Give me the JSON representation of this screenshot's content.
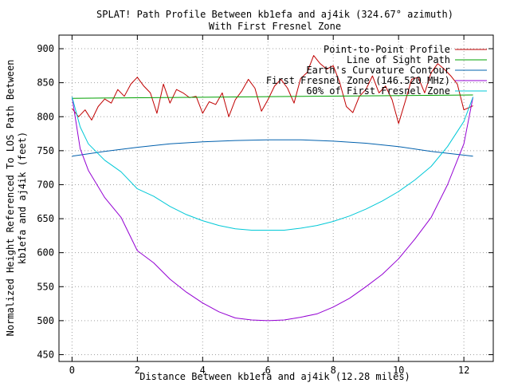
{
  "chart_data": {
    "type": "line",
    "title": "SPLAT! Path Profile Between kb1efa and aj4ik (324.67° azimuth)",
    "subtitle": "With First Fresnel Zone",
    "xlabel": "Distance Between kb1efa and aj4ik (12.28 miles)",
    "ylabel_line1": "Normalized Height Referenced To LOS Path Between",
    "ylabel_line2": "kb1efa and aj4ik (feet)",
    "xlim": [
      -0.4,
      12.9
    ],
    "ylim": [
      440,
      920
    ],
    "x_ticks": [
      0,
      2,
      4,
      6,
      8,
      10,
      12
    ],
    "x_tick_labels": [
      "0",
      "2",
      "4",
      "6",
      "8",
      "10",
      "12"
    ],
    "y_ticks": [
      450,
      500,
      550,
      600,
      650,
      700,
      750,
      800,
      850,
      900
    ],
    "y_tick_labels": [
      "450",
      "500",
      "550",
      "600",
      "650",
      "700",
      "750",
      "800",
      "850",
      "900"
    ],
    "grid": true,
    "legend_position": "top-right",
    "series": [
      {
        "name": "Point-to-Point Profile",
        "color": "#c00000",
        "points": [
          [
            0,
            812
          ],
          [
            0.2,
            800
          ],
          [
            0.4,
            810
          ],
          [
            0.6,
            795
          ],
          [
            0.8,
            815
          ],
          [
            1.0,
            826
          ],
          [
            1.2,
            820
          ],
          [
            1.4,
            840
          ],
          [
            1.6,
            830
          ],
          [
            1.8,
            848
          ],
          [
            2.0,
            858
          ],
          [
            2.2,
            845
          ],
          [
            2.4,
            835
          ],
          [
            2.6,
            805
          ],
          [
            2.8,
            848
          ],
          [
            3.0,
            820
          ],
          [
            3.2,
            840
          ],
          [
            3.4,
            835
          ],
          [
            3.6,
            828
          ],
          [
            3.8,
            830
          ],
          [
            4.0,
            805
          ],
          [
            4.2,
            822
          ],
          [
            4.4,
            818
          ],
          [
            4.6,
            835
          ],
          [
            4.8,
            800
          ],
          [
            5.0,
            825
          ],
          [
            5.2,
            838
          ],
          [
            5.4,
            855
          ],
          [
            5.6,
            842
          ],
          [
            5.8,
            808
          ],
          [
            6.0,
            825
          ],
          [
            6.2,
            845
          ],
          [
            6.4,
            855
          ],
          [
            6.6,
            842
          ],
          [
            6.8,
            820
          ],
          [
            7.0,
            856
          ],
          [
            7.2,
            865
          ],
          [
            7.4,
            890
          ],
          [
            7.6,
            878
          ],
          [
            7.8,
            870
          ],
          [
            8.0,
            875
          ],
          [
            8.2,
            850
          ],
          [
            8.4,
            815
          ],
          [
            8.6,
            806
          ],
          [
            8.8,
            830
          ],
          [
            9.0,
            840
          ],
          [
            9.2,
            860
          ],
          [
            9.4,
            835
          ],
          [
            9.6,
            845
          ],
          [
            9.8,
            825
          ],
          [
            10.0,
            790
          ],
          [
            10.2,
            822
          ],
          [
            10.4,
            855
          ],
          [
            10.6,
            858
          ],
          [
            10.8,
            835
          ],
          [
            11.0,
            865
          ],
          [
            11.2,
            878
          ],
          [
            11.4,
            870
          ],
          [
            11.6,
            860
          ],
          [
            11.8,
            848
          ],
          [
            12.0,
            810
          ],
          [
            12.28,
            816
          ]
        ]
      },
      {
        "name": "Line of Sight Path",
        "color": "#00a000",
        "points": [
          [
            0,
            827
          ],
          [
            12.28,
            832
          ]
        ]
      },
      {
        "name": "Earth's Curvature Contour",
        "color": "#0060ad",
        "points": [
          [
            0,
            742
          ],
          [
            1,
            749
          ],
          [
            2,
            755
          ],
          [
            3,
            760
          ],
          [
            4,
            763
          ],
          [
            5,
            765
          ],
          [
            6,
            766
          ],
          [
            7,
            766
          ],
          [
            8,
            764
          ],
          [
            9,
            761
          ],
          [
            10,
            756
          ],
          [
            11,
            749
          ],
          [
            12.28,
            742
          ]
        ]
      },
      {
        "name": "First Fresnel Zone (146.520 MHz)",
        "color": "#9400d3",
        "center_offset": 327,
        "points": [
          [
            0,
            829
          ],
          [
            0.25,
            753
          ],
          [
            0.5,
            721
          ],
          [
            1,
            681
          ],
          [
            1.5,
            652
          ],
          [
            2,
            603
          ],
          [
            2.5,
            585
          ],
          [
            3,
            561
          ],
          [
            3.5,
            542
          ],
          [
            4,
            526
          ],
          [
            4.5,
            513
          ],
          [
            5,
            504
          ],
          [
            5.5,
            501
          ],
          [
            6.0,
            500
          ],
          [
            6.5,
            501
          ],
          [
            7,
            505
          ],
          [
            7.5,
            510
          ],
          [
            8,
            520
          ],
          [
            8.5,
            533
          ],
          [
            9,
            550
          ],
          [
            9.5,
            568
          ],
          [
            10,
            591
          ],
          [
            10.5,
            620
          ],
          [
            11,
            652
          ],
          [
            11.5,
            700
          ],
          [
            12,
            760
          ],
          [
            12.28,
            829
          ]
        ]
      },
      {
        "name": "60% of First Fresnel Zone",
        "color": "#00c8d7",
        "points": [
          [
            0,
            829
          ],
          [
            0.25,
            785
          ],
          [
            0.5,
            760
          ],
          [
            1,
            736
          ],
          [
            1.5,
            719
          ],
          [
            2,
            694
          ],
          [
            2.5,
            683
          ],
          [
            3,
            668
          ],
          [
            3.5,
            656
          ],
          [
            4,
            647
          ],
          [
            4.5,
            640
          ],
          [
            5,
            635
          ],
          [
            5.5,
            633
          ],
          [
            6.0,
            633
          ],
          [
            6.5,
            633
          ],
          [
            7,
            636
          ],
          [
            7.5,
            640
          ],
          [
            8,
            646
          ],
          [
            8.5,
            654
          ],
          [
            9,
            664
          ],
          [
            9.5,
            676
          ],
          [
            10,
            690
          ],
          [
            10.5,
            707
          ],
          [
            11,
            727
          ],
          [
            11.5,
            756
          ],
          [
            12,
            793
          ],
          [
            12.28,
            829
          ]
        ]
      }
    ]
  }
}
